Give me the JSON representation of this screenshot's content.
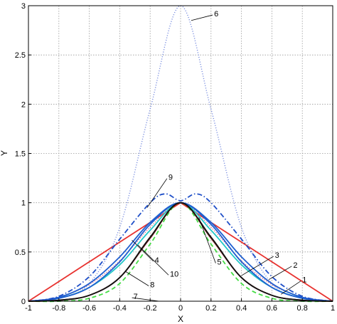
{
  "chart_data": {
    "type": "line",
    "title": "",
    "xlabel": "X",
    "ylabel": "Y",
    "xlim": [
      -1,
      1
    ],
    "ylim": [
      0,
      3
    ],
    "grid": true,
    "legend": "none (curves labelled 1–10 with leader lines)",
    "x_ticks": [
      "-1",
      "-0.8",
      "-0.6",
      "-0.4",
      "-0.2",
      "0",
      "0.2",
      "0.4",
      "0.6",
      "0.8",
      "1"
    ],
    "y_ticks": [
      "0",
      "0.5",
      "1",
      "1.5",
      "2",
      "2.5",
      "3"
    ],
    "series": [
      {
        "name": "1",
        "color": "#e8322f",
        "style": "solid",
        "x": [
          -1,
          -0.8,
          -0.6,
          -0.4,
          -0.2,
          0,
          0.2,
          0.4,
          0.6,
          0.8,
          1
        ],
        "y": [
          0,
          0.2,
          0.4,
          0.6,
          0.8,
          1,
          0.8,
          0.6,
          0.4,
          0.2,
          0
        ]
      },
      {
        "name": "2",
        "color": "#e06080",
        "style": "dotted",
        "x": [
          -1,
          -0.8,
          -0.6,
          -0.4,
          -0.2,
          0,
          0.2,
          0.4,
          0.6,
          0.8,
          1
        ],
        "y": [
          0,
          0.04,
          0.17,
          0.41,
          0.75,
          1,
          0.75,
          0.41,
          0.17,
          0.04,
          0
        ]
      },
      {
        "name": "3",
        "color": "#1f5fd0",
        "style": "solid",
        "x": [
          -1,
          -0.8,
          -0.6,
          -0.4,
          -0.2,
          0,
          0.2,
          0.4,
          0.6,
          0.8,
          1
        ],
        "y": [
          0,
          0.04,
          0.18,
          0.45,
          0.8,
          1,
          0.8,
          0.45,
          0.18,
          0.04,
          0
        ]
      },
      {
        "name": "4",
        "color": "#22c7c7",
        "style": "solid",
        "x": [
          -1,
          -0.8,
          -0.6,
          -0.4,
          -0.2,
          0,
          0.2,
          0.4,
          0.6,
          0.8,
          1
        ],
        "y": [
          0,
          0.03,
          0.14,
          0.37,
          0.72,
          1,
          0.72,
          0.37,
          0.14,
          0.03,
          0
        ]
      },
      {
        "name": "5",
        "color": "#1f5fd0",
        "style": "solid",
        "x": [
          -1,
          -0.8,
          -0.6,
          -0.4,
          -0.2,
          0,
          0.2,
          0.4,
          0.6,
          0.8,
          1
        ],
        "y": [
          0,
          0.03,
          0.14,
          0.4,
          0.78,
          1,
          0.78,
          0.4,
          0.14,
          0.03,
          0
        ]
      },
      {
        "name": "6",
        "color": "#7b8fe0",
        "style": "dotted",
        "x": [
          -1,
          -0.8,
          -0.6,
          -0.4,
          -0.2,
          0,
          0.2,
          0.4,
          0.6,
          0.8,
          1
        ],
        "y": [
          0,
          0.03,
          0.18,
          0.75,
          1.95,
          3,
          1.95,
          0.75,
          0.18,
          0.03,
          0
        ]
      },
      {
        "name": "7",
        "color": "#7a2020",
        "style": "solid",
        "x": [
          -1,
          -0.8,
          -0.6,
          -0.4,
          -0.2,
          0,
          0.2,
          0.4,
          0.6,
          0.8,
          1
        ],
        "y": [
          0,
          0.01,
          0.06,
          0.24,
          0.64,
          1,
          0.64,
          0.24,
          0.06,
          0.01,
          0
        ]
      },
      {
        "name": "8",
        "color": "#111111",
        "style": "solid",
        "x": [
          -1,
          -0.8,
          -0.6,
          -0.4,
          -0.2,
          0,
          0.2,
          0.4,
          0.6,
          0.8,
          1
        ],
        "y": [
          0,
          0.01,
          0.06,
          0.24,
          0.65,
          1,
          0.65,
          0.24,
          0.06,
          0.01,
          0
        ]
      },
      {
        "name": "9",
        "color": "#1f4fc8",
        "style": "dashdot",
        "x": [
          -1,
          -0.8,
          -0.6,
          -0.4,
          -0.2,
          -0.1,
          0,
          0.1,
          0.2,
          0.4,
          0.6,
          0.8,
          1
        ],
        "y": [
          0,
          0.05,
          0.25,
          0.63,
          1.0,
          1.09,
          1.02,
          1.09,
          1.0,
          0.63,
          0.25,
          0.05,
          0
        ]
      },
      {
        "name": "10",
        "color": "#44dd44",
        "style": "dashed",
        "x": [
          -1,
          -0.8,
          -0.6,
          -0.4,
          -0.2,
          0,
          0.2,
          0.4,
          0.6,
          0.8,
          1
        ],
        "y": [
          0,
          0.0,
          0.03,
          0.18,
          0.58,
          1,
          0.58,
          0.18,
          0.03,
          0.0,
          0
        ]
      }
    ],
    "annotations": [
      {
        "text": "1",
        "x": 0.8,
        "y": 0.22
      },
      {
        "text": "2",
        "x": 0.74,
        "y": 0.37
      },
      {
        "text": "3",
        "x": 0.62,
        "y": 0.47
      },
      {
        "text": "4",
        "x": -0.17,
        "y": 0.42
      },
      {
        "text": "5",
        "x": 0.24,
        "y": 0.4
      },
      {
        "text": "6",
        "x": 0.22,
        "y": 2.92
      },
      {
        "text": "7",
        "x": -0.31,
        "y": 0.05
      },
      {
        "text": "8",
        "x": -0.2,
        "y": 0.17
      },
      {
        "text": "9",
        "x": -0.08,
        "y": 1.26
      },
      {
        "text": "10",
        "x": -0.07,
        "y": 0.28
      }
    ]
  }
}
